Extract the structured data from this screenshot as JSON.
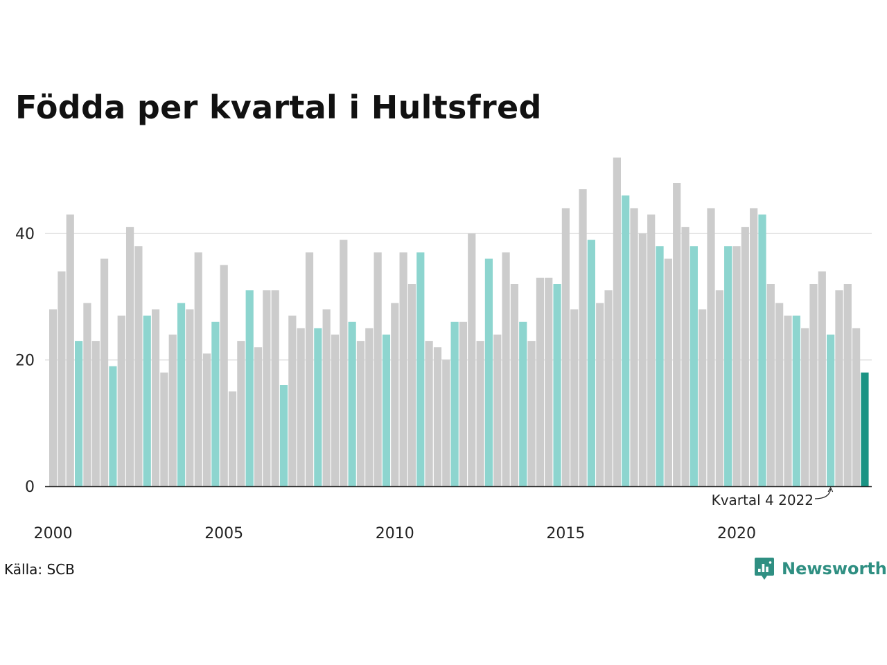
{
  "title": "Född­a per kvartal i Hultsfred",
  "source": "Källa: SCB",
  "brand": {
    "name": "Newsworthy",
    "icon": "newsworthy-logo-icon"
  },
  "chart_data": {
    "type": "bar",
    "title": "Född­a per kvartal i Hultsfred",
    "xlabel": "",
    "ylabel": "",
    "grid": true,
    "legend": "none",
    "ylim": [
      0,
      55
    ],
    "yticks": [
      0,
      20,
      40
    ],
    "x_tick_labels": [
      {
        "label": "2000",
        "year": 2000
      },
      {
        "label": "2005",
        "year": 2005
      },
      {
        "label": "2010",
        "year": 2010
      },
      {
        "label": "2015",
        "year": 2015
      },
      {
        "label": "2020",
        "year": 2020
      }
    ],
    "start": {
      "year": 2000,
      "quarter": 1
    },
    "values": [
      28,
      34,
      43,
      23,
      29,
      23,
      36,
      19,
      27,
      41,
      38,
      27,
      28,
      18,
      24,
      29,
      28,
      37,
      21,
      26,
      35,
      15,
      23,
      31,
      22,
      31,
      31,
      16,
      27,
      25,
      37,
      25,
      28,
      24,
      39,
      26,
      23,
      25,
      37,
      24,
      29,
      37,
      32,
      37,
      23,
      22,
      20,
      26,
      26,
      40,
      23,
      36,
      24,
      37,
      32,
      26,
      23,
      33,
      33,
      32,
      44,
      28,
      47,
      39,
      29,
      31,
      52,
      46,
      44,
      40,
      43,
      38,
      36,
      48,
      41,
      38,
      28,
      44,
      31,
      38,
      38,
      41,
      44,
      43,
      32,
      29,
      27,
      27,
      25,
      32,
      34,
      24,
      31,
      32,
      25,
      18
    ],
    "annotation": {
      "text": "Kvartal 4 2022",
      "index": 91
    },
    "colors": {
      "base": "#cccccc",
      "teal": "#8dd5cf",
      "last": "#1a9484",
      "teal_indices": [
        3,
        7,
        11,
        15,
        19,
        23,
        27,
        31,
        35,
        39,
        43,
        47,
        51,
        55,
        59,
        63,
        67,
        71,
        75,
        79,
        83,
        87,
        91
      ]
    }
  }
}
